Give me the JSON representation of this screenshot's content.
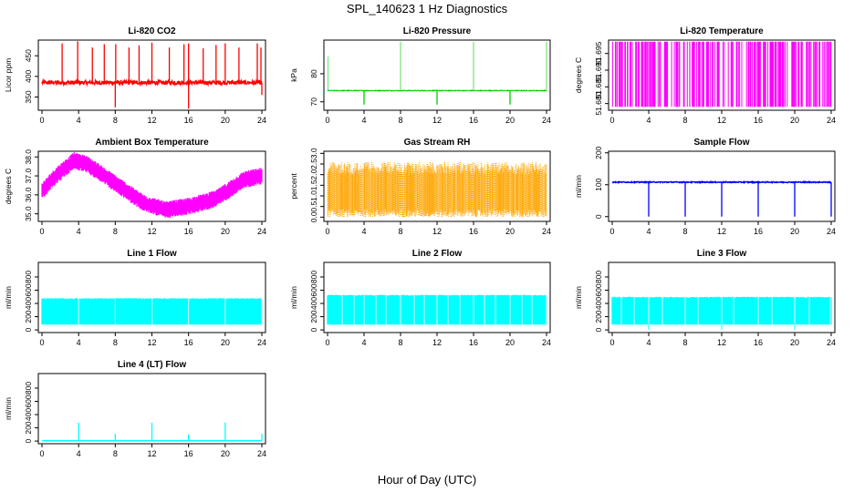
{
  "page": {
    "title": "SPL_140623  1 Hz Diagnostics",
    "xlabel": "Hour of Day (UTC)"
  },
  "chart_data": [
    {
      "type": "line",
      "id": "co2",
      "title": "Li-820 CO2",
      "ylabel": "Licor ppm",
      "color": "#ff0000",
      "xlim": [
        0,
        24
      ],
      "ylim": [
        318,
        488
      ],
      "xticks": [
        0,
        4,
        8,
        12,
        16,
        20,
        24
      ],
      "yticks": [
        350,
        400,
        450
      ],
      "baseline": 385,
      "noise": 10,
      "spikes": [
        {
          "x": 2.2,
          "y": 480
        },
        {
          "x": 3.9,
          "y": 485
        },
        {
          "x": 5.5,
          "y": 470
        },
        {
          "x": 6.8,
          "y": 478
        },
        {
          "x": 8.05,
          "y": 478
        },
        {
          "x": 9.5,
          "y": 470
        },
        {
          "x": 10.6,
          "y": 475
        },
        {
          "x": 12.0,
          "y": 482
        },
        {
          "x": 13.9,
          "y": 470
        },
        {
          "x": 15.5,
          "y": 478
        },
        {
          "x": 16.0,
          "y": 480
        },
        {
          "x": 17.6,
          "y": 468
        },
        {
          "x": 19.0,
          "y": 476
        },
        {
          "x": 20.0,
          "y": 480
        },
        {
          "x": 21.5,
          "y": 470
        },
        {
          "x": 23.5,
          "y": 480
        },
        {
          "x": 23.9,
          "y": 470
        }
      ],
      "dips": [
        {
          "x": 8.0,
          "y": 325
        },
        {
          "x": 16.0,
          "y": 322
        },
        {
          "x": 24.0,
          "y": 355
        }
      ]
    },
    {
      "type": "line",
      "id": "pressure",
      "title": "Li-820 Pressure",
      "ylabel": "kPa",
      "color": "#00cc00",
      "xlim": [
        0,
        24
      ],
      "ylim": [
        67,
        92
      ],
      "xticks": [
        0,
        4,
        8,
        12,
        16,
        20,
        24
      ],
      "yticks": [
        70,
        80
      ],
      "baseline": 74,
      "noise": 0.3,
      "spikes": [
        {
          "x": 0.05,
          "y": 86
        },
        {
          "x": 8.0,
          "y": 91.5
        },
        {
          "x": 16.0,
          "y": 91.5
        },
        {
          "x": 24.0,
          "y": 91.5
        }
      ],
      "dips": [
        {
          "x": 4.0,
          "y": 69
        },
        {
          "x": 12.0,
          "y": 69
        },
        {
          "x": 20.0,
          "y": 69
        }
      ]
    },
    {
      "type": "line",
      "id": "licor-temp",
      "title": "Li-820 Temperature",
      "ylabel": "degrees C",
      "color": "#ff00ff",
      "xlim": [
        0,
        24
      ],
      "ylim": [
        51.678,
        51.699
      ],
      "xticks": [
        0,
        4,
        8,
        12,
        16,
        20,
        24
      ],
      "yticks": [
        51.68,
        51.685,
        51.69,
        51.695
      ],
      "ytick_labels": [
        "51.680",
        "51.685",
        "51.690",
        "51.695"
      ],
      "low": 51.679,
      "high": 51.6985
    },
    {
      "type": "line",
      "id": "ambient-temp",
      "title": "Ambient Box Temperature",
      "ylabel": "degrees C",
      "color": "#ff00ff",
      "xlim": [
        0,
        24
      ],
      "ylim": [
        34.6,
        38.3
      ],
      "xticks": [
        0,
        4,
        8,
        12,
        16,
        20,
        24
      ],
      "yticks": [
        35.0,
        36.0,
        37.0,
        38.0
      ],
      "ytick_labels": [
        "35.0",
        "36.0",
        "37.0",
        "38.0"
      ],
      "anchors": [
        {
          "x": 0,
          "y": 36.2
        },
        {
          "x": 1.5,
          "y": 37.0
        },
        {
          "x": 3.5,
          "y": 37.8
        },
        {
          "x": 5,
          "y": 37.6
        },
        {
          "x": 8,
          "y": 36.6
        },
        {
          "x": 11,
          "y": 35.6
        },
        {
          "x": 13.5,
          "y": 35.2
        },
        {
          "x": 16,
          "y": 35.4
        },
        {
          "x": 19,
          "y": 35.8
        },
        {
          "x": 22,
          "y": 36.8
        },
        {
          "x": 24,
          "y": 37.0
        }
      ],
      "noise": 0.45
    },
    {
      "type": "line",
      "id": "rh",
      "title": "Gas Stream RH",
      "ylabel": "percent",
      "color": "#ffa500",
      "xlim": [
        0,
        24
      ],
      "ylim": [
        -0.2,
        3.1
      ],
      "xticks": [
        0,
        4,
        8,
        12,
        16,
        20,
        24
      ],
      "yticks": [
        0.0,
        0.5,
        1.0,
        1.5,
        2.0,
        2.5,
        3.0
      ],
      "ytick_labels": [
        "0.0",
        "0.5",
        "1.0",
        "1.5",
        "2.0",
        "2.5",
        "3.0"
      ],
      "low": 0.0,
      "high": 2.6
    },
    {
      "type": "line",
      "id": "sample-flow",
      "title": "Sample Flow",
      "ylabel": "ml/min",
      "color": "#0000ff",
      "xlim": [
        0,
        24
      ],
      "ylim": [
        -15,
        205
      ],
      "xticks": [
        0,
        4,
        8,
        12,
        16,
        20,
        24
      ],
      "yticks": [
        0,
        100,
        200
      ],
      "baseline": 108,
      "noise": 3,
      "dips": [
        {
          "x": 4.0,
          "y": 0
        },
        {
          "x": 8.0,
          "y": 0
        },
        {
          "x": 12.0,
          "y": 0
        },
        {
          "x": 16.0,
          "y": 0
        },
        {
          "x": 20.0,
          "y": 0
        },
        {
          "x": 24.0,
          "y": 0
        }
      ]
    },
    {
      "type": "area",
      "id": "line1",
      "title": "Line 1 Flow",
      "ylabel": "ml/min",
      "color": "#00ffff",
      "xlim": [
        0,
        24
      ],
      "ylim": [
        -40,
        1020
      ],
      "xticks": [
        0,
        4,
        8,
        12,
        16,
        20,
        24
      ],
      "yticks": [
        0,
        200,
        400,
        600,
        800
      ],
      "low": 80,
      "high": 480,
      "gaps": [
        4.0,
        8.0,
        12.0,
        16.0,
        20.0,
        24.0
      ]
    },
    {
      "type": "area",
      "id": "line2",
      "title": "Line 2 Flow",
      "ylabel": "ml/min",
      "color": "#00ffff",
      "xlim": [
        0,
        24
      ],
      "ylim": [
        -40,
        1020
      ],
      "xticks": [
        0,
        4,
        8,
        12,
        16,
        20,
        24
      ],
      "yticks": [
        0,
        200,
        400,
        600,
        800
      ],
      "low": 80,
      "high": 530,
      "gaps": [
        1.6,
        2.9,
        4.0,
        5.3,
        6.4,
        8.0,
        9.5,
        10.6,
        12.0,
        13.2,
        14.5,
        16.0,
        17.2,
        18.4,
        20.0,
        21.3,
        22.4,
        24.0
      ]
    },
    {
      "type": "area",
      "id": "line3",
      "title": "Line 3 Flow",
      "ylabel": "ml/min",
      "color": "#00ffff",
      "xlim": [
        0,
        24
      ],
      "ylim": [
        -40,
        1020
      ],
      "xticks": [
        0,
        4,
        8,
        12,
        16,
        20,
        24
      ],
      "yticks": [
        0,
        200,
        400,
        600,
        800
      ],
      "low": 80,
      "high": 500,
      "gaps": [
        1.0,
        2.4,
        4.0,
        5.5,
        8.0,
        9.4,
        12.0,
        13.3,
        16.0,
        17.5,
        20.0,
        21.6,
        23.9
      ],
      "dips": [
        4.0,
        12.0,
        20.0
      ]
    },
    {
      "type": "line",
      "id": "line4",
      "title": "Line 4 (LT) Flow",
      "ylabel": "ml/min",
      "color": "#00ffff",
      "xlim": [
        0,
        24
      ],
      "ylim": [
        -40,
        1020
      ],
      "xticks": [
        0,
        4,
        8,
        12,
        16,
        20,
        24
      ],
      "yticks": [
        0,
        200,
        400,
        600,
        800
      ],
      "baseline": 5,
      "spikes": [
        {
          "x": 4.0,
          "y": 280
        },
        {
          "x": 8.0,
          "y": 110
        },
        {
          "x": 12.0,
          "y": 280
        },
        {
          "x": 16.0,
          "y": 100
        },
        {
          "x": 20.0,
          "y": 280
        },
        {
          "x": 24.0,
          "y": 110
        }
      ]
    }
  ]
}
